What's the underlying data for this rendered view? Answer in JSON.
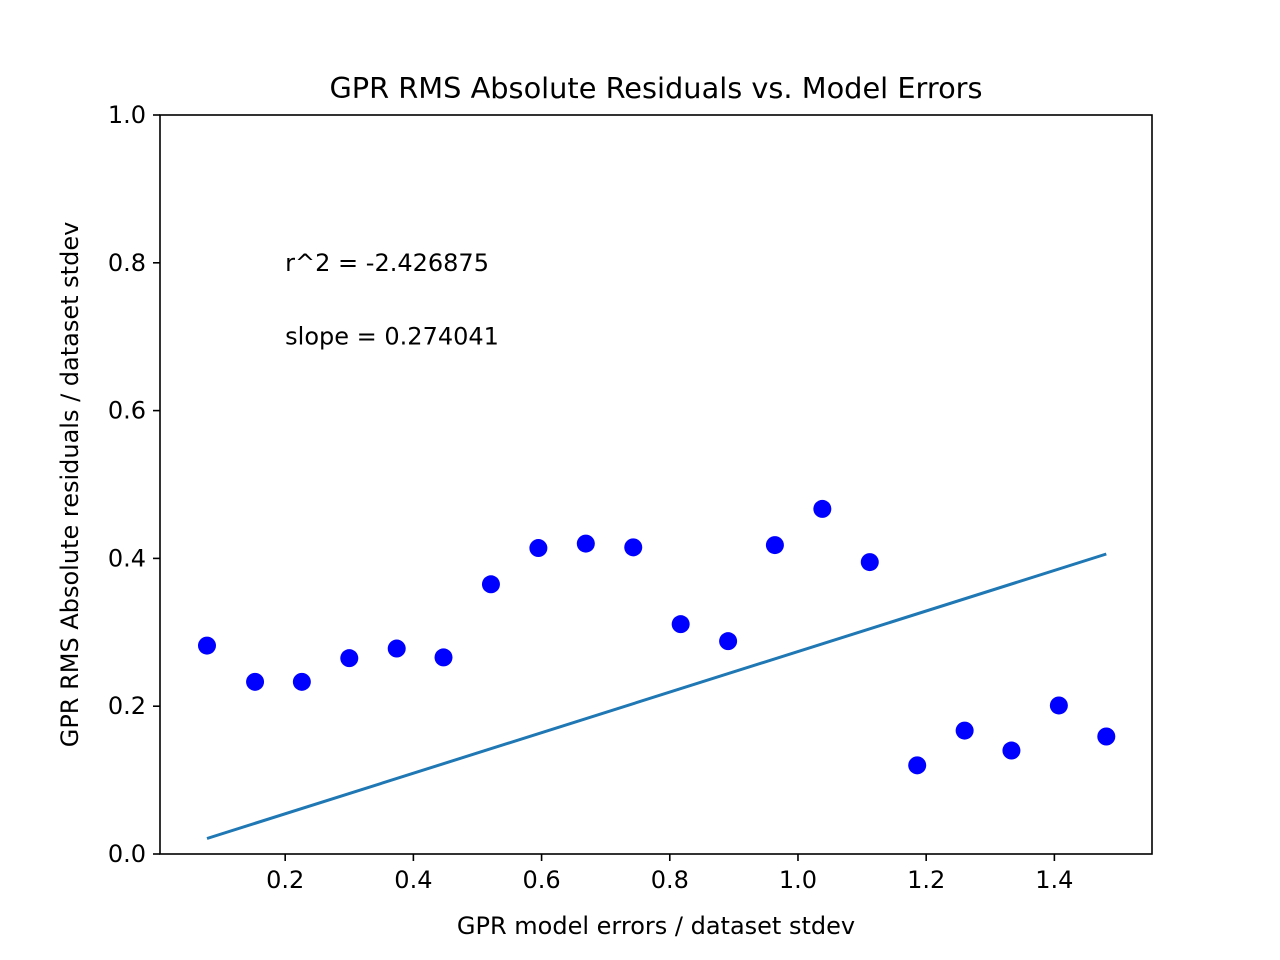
{
  "chart_data": {
    "type": "scatter",
    "title": "GPR RMS Absolute Residuals vs. Model Errors",
    "xlabel": "GPR model errors / dataset stdev",
    "ylabel": "GPR RMS Absolute residuals / dataset stdev",
    "xlim": [
      0.0047,
      1.5523
    ],
    "ylim": [
      0.0,
      1.0
    ],
    "x_ticks": [
      "0.2",
      "0.4",
      "0.6",
      "0.8",
      "1.0",
      "1.2",
      "1.4"
    ],
    "y_ticks": [
      "0.0",
      "0.2",
      "0.4",
      "0.6",
      "0.8",
      "1.0"
    ],
    "grid": false,
    "series": [
      {
        "type": "scatter",
        "color": "#0000ff",
        "points": [
          {
            "x": 0.078,
            "y": 0.282
          },
          {
            "x": 0.153,
            "y": 0.233
          },
          {
            "x": 0.226,
            "y": 0.233
          },
          {
            "x": 0.3,
            "y": 0.265
          },
          {
            "x": 0.374,
            "y": 0.278
          },
          {
            "x": 0.447,
            "y": 0.266
          },
          {
            "x": 0.521,
            "y": 0.365
          },
          {
            "x": 0.595,
            "y": 0.414
          },
          {
            "x": 0.669,
            "y": 0.42
          },
          {
            "x": 0.743,
            "y": 0.415
          },
          {
            "x": 0.817,
            "y": 0.311
          },
          {
            "x": 0.891,
            "y": 0.288
          },
          {
            "x": 0.964,
            "y": 0.418
          },
          {
            "x": 1.038,
            "y": 0.467
          },
          {
            "x": 1.112,
            "y": 0.395
          },
          {
            "x": 1.186,
            "y": 0.12
          },
          {
            "x": 1.26,
            "y": 0.167
          },
          {
            "x": 1.333,
            "y": 0.14
          },
          {
            "x": 1.407,
            "y": 0.201
          },
          {
            "x": 1.481,
            "y": 0.159
          }
        ]
      },
      {
        "type": "line",
        "color": "#1f77b4",
        "points": [
          {
            "x": 0.078,
            "y": 0.021
          },
          {
            "x": 1.481,
            "y": 0.406
          }
        ]
      }
    ],
    "annotations": [
      {
        "text": "r^2 = -2.426875",
        "x": 0.2,
        "y": 0.8
      },
      {
        "text": "slope = 0.274041",
        "x": 0.2,
        "y": 0.7
      }
    ]
  }
}
